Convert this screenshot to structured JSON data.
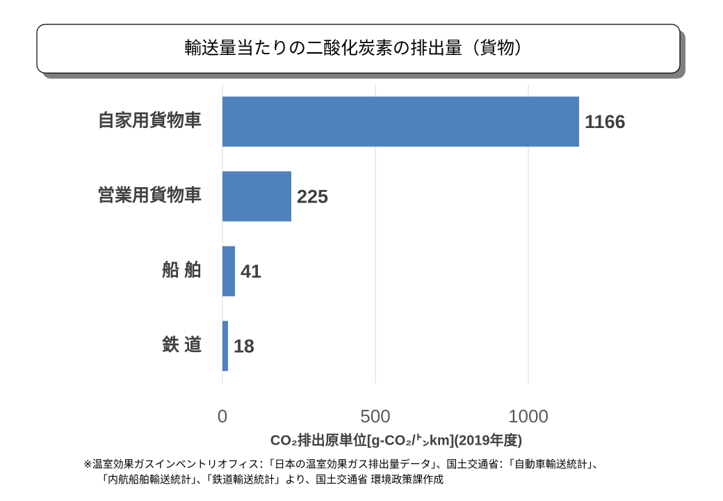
{
  "chart_data": {
    "type": "barh",
    "title": "輸送量当たりの二酸化炭素の排出量（貨物）",
    "categories": [
      "自家用貨物車",
      "営業用貨物車",
      "船 舶",
      "鉄 道"
    ],
    "values": [
      1166,
      225,
      41,
      18
    ],
    "color": "#4f81bd",
    "xlim": [
      0,
      1200
    ],
    "xticks": [
      0,
      500,
      1000
    ],
    "grid": true,
    "x_label": "CO₂排出原単位[g-CO₂/㌧km](2019年度)",
    "notes": [
      "※温室効果ガスインベントリオフィス：「日本の温室効果ガス排出量データ」、国土交通省：「自動車輸送統計」、",
      "「内航船舶輸送統計」、「鉄道輸送統計」より、国土交通省 環境政策課作成"
    ]
  }
}
